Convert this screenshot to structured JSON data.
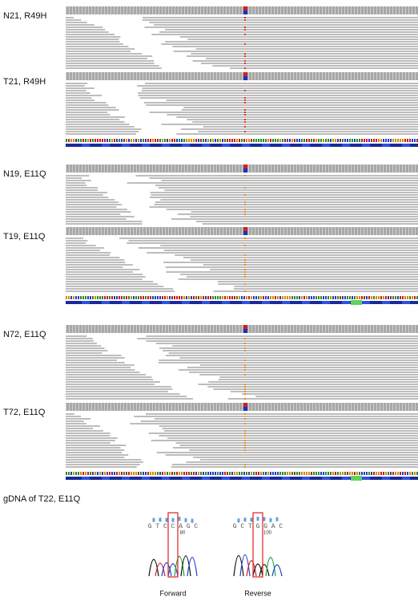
{
  "panels": [
    {
      "samples": [
        {
          "label": "N21, R49H"
        },
        {
          "label": "T21, R49H"
        }
      ]
    },
    {
      "samples": [
        {
          "label": "N19, E11Q"
        },
        {
          "label": "T19, E11Q"
        }
      ]
    },
    {
      "samples": [
        {
          "label": "N72, E11Q"
        },
        {
          "label": "T72, E11Q"
        }
      ]
    }
  ],
  "sanger": {
    "title": "gDNA of T22, E11Q",
    "traces": [
      {
        "bases": "G T C C A G C",
        "position": "80",
        "direction": "Forward"
      },
      {
        "bases": "G C T G G A C",
        "position": "100",
        "direction": "Reverse"
      }
    ]
  }
}
